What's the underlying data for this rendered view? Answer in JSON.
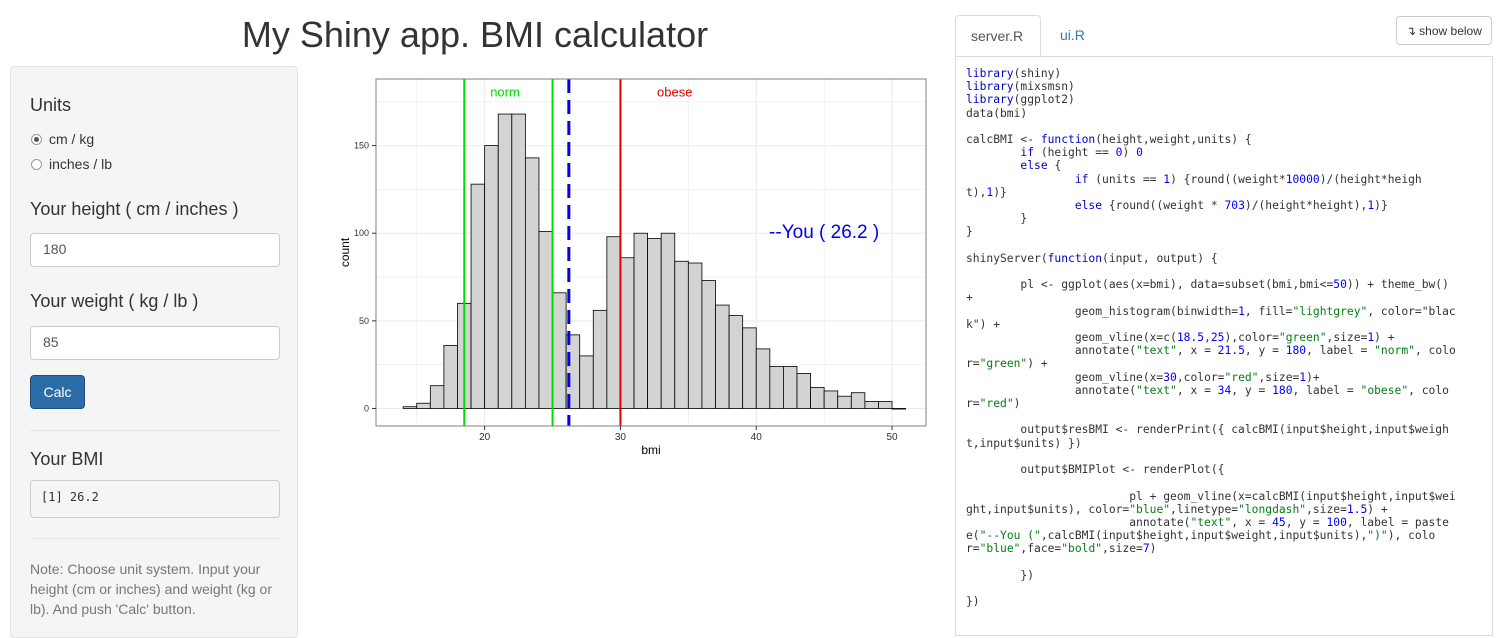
{
  "app": {
    "title": "My Shiny app. BMI calculator"
  },
  "sidebar": {
    "units_label": "Units",
    "unit_options": [
      {
        "label": "cm / kg",
        "selected": true
      },
      {
        "label": "inches / lb",
        "selected": false
      }
    ],
    "height_label": "Your height ( cm / inches )",
    "height_value": "180",
    "weight_label": "Your weight ( kg / lb )",
    "weight_value": "85",
    "calc_button": "Calc",
    "bmi_label": "Your BMI",
    "bmi_output": "[1] 26.2",
    "note": "Note: Choose unit system. Input your height (cm or inches) and weight (kg or lb). And push 'Calc' button."
  },
  "tabs": [
    {
      "label": "server.R",
      "active": true
    },
    {
      "label": "ui.R",
      "active": false
    }
  ],
  "show_below_button": "show below",
  "code_lines": [
    "library(shiny)",
    "library(mixsmsn)",
    "library(ggplot2)",
    "data(bmi)",
    "",
    "calcBMI <- function(height,weight,units) {",
    "        if (height == 0) 0",
    "        else {",
    "                if (units == 1) {round((weight*10000)/(height*heigh",
    "t),1)}",
    "                else {round((weight * 703)/(height*height),1)}",
    "        }",
    "}",
    "",
    "shinyServer(function(input, output) {",
    "",
    "        pl <- ggplot(aes(x=bmi), data=subset(bmi,bmi<=50)) + theme_bw()",
    "+",
    "                geom_histogram(binwidth=1, fill=\"lightgrey\", color=\"blac",
    "k\") +",
    "                geom_vline(x=c(18.5,25),color=\"green\",size=1) +",
    "                annotate(\"text\", x = 21.5, y = 180, label = \"norm\", colo",
    "r=\"green\") +",
    "                geom_vline(x=30,color=\"red\",size=1)+",
    "                annotate(\"text\", x = 34, y = 180, label = \"obese\", colo",
    "r=\"red\")",
    "",
    "        output$resBMI <- renderPrint({ calcBMI(input$height,input$weigh",
    "t,input$units) })",
    "",
    "        output$BMIPlot <- renderPlot({",
    "",
    "                        pl + geom_vline(x=calcBMI(input$height,input$wei",
    "ght,input$units), color=\"blue\",linetype=\"longdash\",size=1.5) +",
    "                        annotate(\"text\", x = 45, y = 100, label = paste",
    "e(\"--You (\",calcBMI(input$height,input$weight,input$units),\")\"), colo",
    "r=\"blue\",face=\"bold\",size=7)",
    "",
    "        })",
    "",
    "})"
  ],
  "chart_data": {
    "type": "bar",
    "xlabel": "bmi",
    "ylabel": "count",
    "xlim": [
      12,
      52.5
    ],
    "ylim": [
      -10,
      188
    ],
    "xticks": [
      20,
      30,
      40,
      50
    ],
    "yticks": [
      0,
      50,
      100,
      150
    ],
    "bin_width": 1,
    "bin_starts": [
      14,
      15,
      16,
      17,
      18,
      19,
      20,
      21,
      22,
      23,
      24,
      25,
      26,
      27,
      28,
      29,
      30,
      31,
      32,
      33,
      34,
      35,
      36,
      37,
      38,
      39,
      40,
      41,
      42,
      43,
      44,
      45,
      46,
      47,
      48,
      49,
      50
    ],
    "values": [
      1,
      3,
      13,
      36,
      60,
      128,
      150,
      168,
      168,
      143,
      101,
      66,
      42,
      30,
      56,
      98,
      86,
      100,
      97,
      100,
      84,
      83,
      73,
      59,
      53,
      46,
      34,
      24,
      24,
      20,
      12,
      10,
      7,
      9,
      4,
      4,
      0
    ],
    "bar_fill": "#d3d3d3",
    "bar_stroke": "#000000",
    "vlines": [
      {
        "x": 18.5,
        "color": "#00dd00",
        "style": "solid"
      },
      {
        "x": 25,
        "color": "#00dd00",
        "style": "solid"
      },
      {
        "x": 30,
        "color": "#dd0000",
        "style": "solid"
      },
      {
        "x": 26.2,
        "color": "#0000ee",
        "style": "longdash"
      }
    ],
    "annotations": [
      {
        "x": 21.5,
        "y": 180,
        "text": "norm",
        "color": "#00dd00",
        "size": "small"
      },
      {
        "x": 34,
        "y": 180,
        "text": "obese",
        "color": "#dd0000",
        "size": "small"
      },
      {
        "x": 45,
        "y": 100,
        "text": "--You ( 26.2 )",
        "color": "#0000ee",
        "size": "large"
      }
    ],
    "grid": true,
    "theme": "bw"
  }
}
